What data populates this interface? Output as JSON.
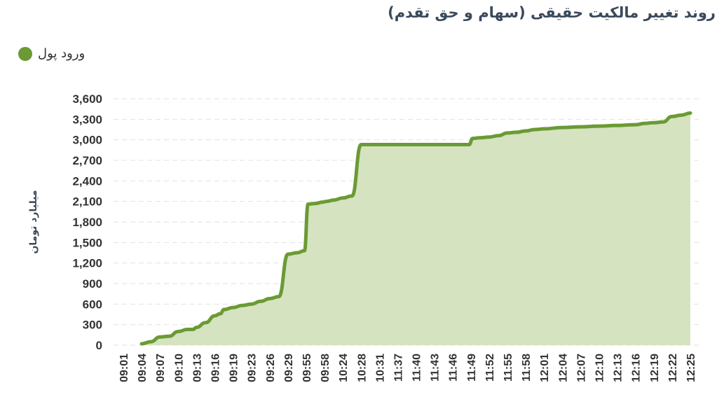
{
  "chart_data": {
    "type": "area",
    "title": "روند تغییر مالکیت حقیقی (سهام و حق تقدم)",
    "xlabel": "",
    "ylabel": "میلیارد تومان",
    "legend": "top-left",
    "grid": true,
    "ylim": [
      0,
      3600
    ],
    "yticks": [
      0,
      300,
      600,
      900,
      1200,
      1500,
      1800,
      2100,
      2400,
      2700,
      3000,
      3300,
      3600
    ],
    "ytick_labels": [
      "0",
      "300",
      "600",
      "900",
      "1,200",
      "1,500",
      "1,800",
      "2,100",
      "2,400",
      "2,700",
      "3,000",
      "3,300",
      "3,600"
    ],
    "categories": [
      "09:01",
      "09:04",
      "09:07",
      "09:10",
      "09:13",
      "09:16",
      "09:19",
      "09:23",
      "09:26",
      "09:29",
      "09:55",
      "09:58",
      "10:24",
      "10:28",
      "10:31",
      "11:37",
      "11:40",
      "11:43",
      "11:46",
      "11:49",
      "11:52",
      "11:55",
      "11:58",
      "12:01",
      "12:04",
      "12:07",
      "12:10",
      "12:13",
      "12:16",
      "12:19",
      "12:22",
      "12:25"
    ],
    "series": [
      {
        "name": "ورود پول",
        "color": "#6b9a34",
        "fill": "#d5e3c0",
        "x": [
          1.0,
          1.5,
          2.0,
          2.5,
          3.0,
          3.5,
          3.8,
          4.0,
          4.5,
          5.0,
          5.3,
          5.5,
          6.0,
          6.5,
          7.0,
          7.5,
          8.0,
          8.5,
          9.0,
          9.5,
          9.9,
          10.1,
          10.5,
          10.9,
          11.1,
          11.5,
          12.0,
          12.5,
          13.0,
          13.5,
          13.9,
          14.1,
          14.5,
          15.0,
          16.0,
          17.0,
          18.0,
          18.9,
          19.1,
          19.5,
          20.0,
          20.5,
          21.0,
          21.5,
          22.0,
          22.5,
          23.0,
          24.0,
          25.0,
          26.0,
          27.0,
          28.0,
          28.5,
          29.0,
          29.5,
          30.0,
          30.5,
          31.0
        ],
        "values": [
          20,
          50,
          120,
          130,
          200,
          230,
          230,
          260,
          330,
          430,
          460,
          520,
          550,
          580,
          600,
          640,
          680,
          710,
          1330,
          1350,
          1380,
          2060,
          2070,
          2090,
          2100,
          2120,
          2150,
          2180,
          2930,
          2930,
          2930,
          2930,
          2930,
          2930,
          2930,
          2930,
          2930,
          2930,
          3020,
          3030,
          3040,
          3060,
          3100,
          3110,
          3130,
          3150,
          3160,
          3180,
          3190,
          3200,
          3210,
          3220,
          3240,
          3250,
          3260,
          3340,
          3360,
          3390
        ]
      }
    ]
  }
}
